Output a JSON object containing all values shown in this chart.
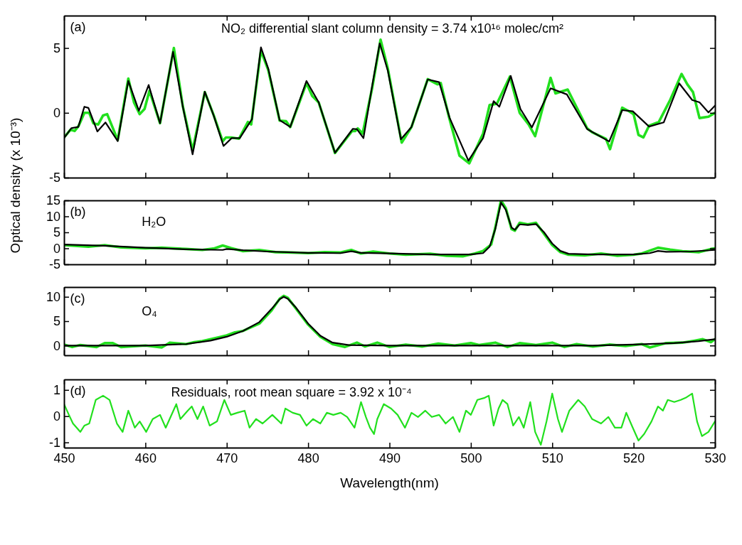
{
  "chart_data": [
    {
      "type": "line",
      "xlim": [
        450,
        530
      ],
      "xticks": [
        450,
        460,
        470,
        480,
        490,
        500,
        510,
        520,
        530
      ],
      "ylim": [
        -5,
        7.5
      ],
      "yticks": [
        -5,
        0,
        5
      ],
      "tick_labels": "y",
      "annotations": [
        "(a)",
        "NO₂ differential slant column density = 3.74 x10¹⁶ molec/cm²"
      ],
      "series": [
        {
          "color": "#22e01e",
          "x": [
            450,
            450.8,
            451.3,
            451.8,
            452.5,
            453.1,
            453.6,
            454.2,
            454.8,
            455.3,
            456.6,
            457.9,
            458.6,
            459.3,
            459.9,
            460.5,
            461.8,
            463.5,
            464.6,
            465.8,
            467.3,
            468.4,
            469.5,
            469.9,
            470.6,
            471.5,
            472.6,
            473.0,
            474.2,
            475.1,
            476.5,
            477.3,
            477.8,
            479.8,
            480.5,
            481.3,
            483.3,
            485.4,
            485.8,
            486.1,
            486.7,
            487.9,
            488.9,
            489.8,
            491.5,
            492.7,
            494.7,
            495.9,
            496.3,
            497.3,
            498.6,
            499.8,
            501.5,
            502.3,
            503.2,
            504.8,
            506.0,
            507.1,
            507.9,
            509.8,
            510.4,
            511.9,
            512.7,
            514.3,
            514.9,
            516.6,
            517.1,
            518.6,
            519.5,
            520.0,
            520.6,
            521.2,
            521.9,
            523.1,
            524.5,
            525.9,
            526.6,
            527.3,
            528.1,
            529.2,
            530
          ],
          "values": [
            -1.9,
            -1.3,
            -1.4,
            -1.0,
            0.0,
            0.0,
            -0.8,
            -0.9,
            -0.2,
            -0.1,
            -2.1,
            2.65,
            0.8,
            -0.1,
            0.3,
            1.7,
            -0.8,
            5.0,
            0.5,
            -2.9,
            1.6,
            -0.2,
            -2.2,
            -1.9,
            -1.9,
            -2.0,
            -0.7,
            -0.9,
            4.8,
            3.3,
            -0.6,
            -0.65,
            -1.1,
            2.3,
            1.3,
            0.8,
            -3.1,
            -1.4,
            -1.4,
            -1.2,
            -1.6,
            2.0,
            5.65,
            3.4,
            -2.3,
            -1.1,
            2.6,
            2.2,
            2.3,
            -0.3,
            -3.3,
            -3.9,
            -1.6,
            0.6,
            0.7,
            2.8,
            0.0,
            -0.9,
            -1.8,
            2.7,
            1.5,
            1.8,
            0.8,
            -1.2,
            -1.5,
            -2.0,
            -2.8,
            0.4,
            0.1,
            -0.1,
            -1.7,
            -1.9,
            -1.0,
            -0.7,
            1.0,
            3.0,
            2.2,
            1.6,
            -0.4,
            -0.3,
            0.0
          ]
        },
        {
          "color": "#000000",
          "x": [
            450,
            450.9,
            451.75,
            452.5,
            453.0,
            454.1,
            455.1,
            456.6,
            457.9,
            459.2,
            460.4,
            461.8,
            463.4,
            464.6,
            465.8,
            467.3,
            468.4,
            469.6,
            470.6,
            471.6,
            473.1,
            474.2,
            475.1,
            476.5,
            477.8,
            479.8,
            481.3,
            483.3,
            485.5,
            486.0,
            486.8,
            487.9,
            488.8,
            489.8,
            491.4,
            492.7,
            494.7,
            496.1,
            497.4,
            499.7,
            501.5,
            502.8,
            503.5,
            504.9,
            506.1,
            507.5,
            509.8,
            511.8,
            514.3,
            517.0,
            518.6,
            519.9,
            521.9,
            523.7,
            525.6,
            527.2,
            528.1,
            529.2,
            530
          ],
          "values": [
            -1.95,
            -1.18,
            -1.09,
            0.47,
            0.38,
            -1.44,
            -0.74,
            -2.18,
            2.46,
            0.16,
            2.15,
            -0.8,
            4.71,
            0.47,
            -3.2,
            1.63,
            -0.22,
            -2.56,
            -1.95,
            -1.95,
            -0.48,
            5.05,
            3.41,
            -0.57,
            -1.09,
            2.46,
            0.81,
            -3.08,
            -1.23,
            -1.26,
            -1.95,
            2.2,
            5.36,
            3.24,
            -2.04,
            -1.09,
            2.58,
            2.37,
            -0.4,
            -3.69,
            -1.95,
            0.9,
            0.47,
            2.85,
            0.29,
            -1.12,
            1.89,
            1.42,
            -1.26,
            -2.21,
            0.21,
            0.12,
            -1.06,
            -0.74,
            2.28,
            0.99,
            0.81,
            0.03,
            0.55
          ]
        }
      ]
    },
    {
      "type": "line",
      "xlim": [
        450,
        530
      ],
      "xticks": [
        450,
        460,
        470,
        480,
        490,
        500,
        510,
        520,
        530
      ],
      "ylim": [
        -5,
        15
      ],
      "yticks": [
        -5,
        0,
        5,
        10,
        15
      ],
      "tick_labels": "y",
      "ylabel": "Optical density (x 10⁻³)",
      "annotations": [
        "(b)",
        "H₂O"
      ],
      "series": [
        {
          "color": "#22e01e",
          "x": [
            450,
            453,
            455,
            457,
            460,
            462,
            465,
            467,
            468.5,
            469.5,
            470.5,
            472,
            474,
            476,
            478,
            480,
            482,
            484,
            485.3,
            486.5,
            488,
            490,
            492,
            495,
            497,
            499,
            500.5,
            501.5,
            502.5,
            503,
            503.7,
            504.3,
            505,
            505.4,
            506,
            507,
            508,
            509,
            510,
            511,
            512,
            514,
            516,
            518,
            520,
            521,
            523,
            524.5,
            526,
            528,
            529.5,
            530
          ],
          "values": [
            1.0,
            0.5,
            1.0,
            0.3,
            0.0,
            0.2,
            -0.2,
            -0.5,
            0.0,
            0.9,
            0.1,
            -0.9,
            -0.5,
            -1.2,
            -1.3,
            -1.5,
            -1.2,
            -1.3,
            -0.5,
            -1.6,
            -1.0,
            -1.6,
            -2.0,
            -1.7,
            -2.3,
            -2.5,
            -1.6,
            -0.8,
            1.2,
            6.5,
            15.0,
            12.5,
            6.0,
            5.5,
            8.0,
            7.5,
            8.0,
            4.5,
            1.0,
            -1.2,
            -2.0,
            -2.2,
            -1.6,
            -2.3,
            -2.0,
            -1.6,
            0.2,
            -0.4,
            -0.9,
            -1.2,
            -0.2,
            0.0
          ]
        },
        {
          "color": "#000000",
          "x": [
            450,
            455,
            460,
            465,
            469.5,
            470,
            472,
            475,
            480,
            484,
            485.3,
            486.5,
            490,
            495,
            500,
            501.5,
            502.3,
            503,
            503.7,
            504.3,
            505,
            505.4,
            506,
            507,
            508,
            509,
            510,
            511,
            512,
            515,
            520,
            522,
            523,
            524,
            527,
            530
          ],
          "values": [
            1.2,
            0.8,
            0.2,
            -0.3,
            -0.5,
            -0.2,
            -0.6,
            -1.0,
            -1.4,
            -1.5,
            -0.9,
            -1.4,
            -1.6,
            -1.9,
            -1.9,
            -1.5,
            0.5,
            6,
            14.3,
            12,
            6.5,
            5.8,
            7.5,
            7.3,
            7.6,
            5,
            1.5,
            -0.8,
            -1.7,
            -1.9,
            -1.9,
            -1.5,
            -0.8,
            -1.1,
            -1.0,
            -0.5
          ]
        }
      ]
    },
    {
      "type": "line",
      "xlim": [
        450,
        530
      ],
      "xticks": [
        450,
        460,
        470,
        480,
        490,
        500,
        510,
        520,
        530
      ],
      "ylim": [
        -2,
        12
      ],
      "yticks": [
        0,
        5,
        10
      ],
      "tick_labels": "y",
      "annotations": [
        "(c)",
        "O₄"
      ],
      "series": [
        {
          "color": "#22e01e",
          "x": [
            450,
            451,
            452,
            454,
            455,
            456,
            457,
            460,
            462,
            463,
            465,
            466,
            467,
            469,
            470,
            471,
            472,
            474,
            475.5,
            476.5,
            477,
            477.5,
            478.5,
            480,
            481.5,
            483,
            484.5,
            486,
            487,
            488.5,
            490,
            492,
            494,
            496,
            498,
            500,
            501,
            503,
            504.5,
            506,
            508,
            510,
            511.5,
            513,
            515,
            517,
            519,
            521,
            522,
            524,
            526,
            527.5,
            528.5,
            529.5,
            530
          ],
          "values": [
            0.2,
            -0.3,
            0.1,
            -0.3,
            0.5,
            0.5,
            -0.3,
            0.0,
            -0.4,
            0.6,
            0.3,
            0.7,
            0.9,
            1.7,
            2.1,
            2.7,
            3.0,
            4.5,
            7.2,
            9.6,
            10.2,
            9.8,
            7.6,
            4.3,
            1.8,
            0.3,
            -0.3,
            0.6,
            -0.2,
            0.6,
            -0.3,
            0.2,
            -0.2,
            0.4,
            0.0,
            0.5,
            0.1,
            0.6,
            -0.3,
            0.5,
            0.1,
            0.6,
            -0.3,
            0.3,
            -0.2,
            0.2,
            -0.1,
            0.3,
            -0.4,
            0.5,
            0.6,
            1.0,
            1.3,
            0.7,
            1.3
          ]
        },
        {
          "color": "#000000",
          "x": [
            450,
            460,
            465,
            468,
            470,
            472,
            474,
            475.5,
            476.5,
            477,
            477.5,
            478.5,
            480,
            481.5,
            483,
            485,
            490,
            500,
            510,
            515,
            520,
            525,
            528,
            530
          ],
          "values": [
            0,
            0,
            0.3,
            1.0,
            1.8,
            3.0,
            4.8,
            7.5,
            9.5,
            10,
            9.6,
            7.8,
            4.5,
            2,
            0.6,
            0.1,
            0,
            0,
            0,
            0,
            0.2,
            0.5,
            0.9,
            1.3
          ]
        }
      ]
    },
    {
      "type": "line",
      "xlim": [
        450,
        530
      ],
      "xticks": [
        450,
        460,
        470,
        480,
        490,
        500,
        510,
        520,
        530
      ],
      "ylim": [
        -1.2,
        1.4
      ],
      "yticks": [
        -1,
        0,
        1
      ],
      "xlabel": "Wavelength(nm)",
      "annotations": [
        "(d)",
        "Residuals, root mean square = 3.92 x 10⁻⁴"
      ],
      "series": [
        {
          "color": "#22e01e",
          "x": [
            450,
            450.6,
            451.1,
            452.0,
            452.5,
            453.1,
            453.9,
            454.8,
            455.6,
            456.5,
            457.2,
            457.9,
            458.7,
            459.3,
            460.1,
            460.9,
            461.8,
            462.5,
            463.8,
            464.3,
            465.2,
            465.7,
            466.4,
            467.1,
            467.9,
            468.8,
            469.7,
            470.5,
            471.3,
            472.2,
            472.8,
            473.6,
            474.4,
            475.6,
            476.7,
            477.2,
            478.1,
            479.0,
            479.8,
            480.6,
            481.5,
            482.3,
            483.1,
            484.0,
            484.8,
            485.7,
            486.5,
            487.1,
            487.6,
            488.1,
            488.5,
            489.3,
            490.2,
            491.0,
            491.9,
            492.7,
            493.5,
            494.4,
            495.2,
            496.1,
            496.9,
            497.8,
            498.6,
            499.4,
            500.0,
            500.8,
            501.7,
            502.2,
            502.8,
            503.4,
            503.9,
            504.5,
            505.2,
            505.9,
            506.5,
            507.3,
            507.9,
            508.6,
            509.3,
            510.0,
            510.7,
            511.2,
            512.1,
            513.2,
            514.0,
            514.9,
            516.0,
            516.9,
            517.7,
            518.5,
            519.1,
            519.9,
            520.6,
            521.3,
            522.2,
            523.0,
            523.6,
            524.2,
            525.0,
            525.8,
            526.4,
            527.2,
            527.8,
            528.4,
            529.2,
            530.0
          ],
          "values": [
            0.46,
            0.05,
            -0.28,
            -0.6,
            -0.36,
            -0.28,
            0.62,
            0.78,
            0.62,
            -0.28,
            -0.6,
            0.21,
            -0.44,
            -0.2,
            -0.6,
            -0.11,
            0.05,
            -0.44,
            0.46,
            -0.11,
            0.21,
            0.37,
            -0.11,
            0.37,
            -0.36,
            -0.2,
            0.62,
            0.05,
            0.13,
            0.21,
            -0.44,
            -0.11,
            -0.28,
            0.05,
            -0.28,
            0.29,
            0.13,
            0.05,
            -0.36,
            -0.11,
            -0.28,
            0.13,
            0.05,
            0.13,
            -0.03,
            -0.44,
            0.54,
            -0.03,
            -0.44,
            -0.68,
            -0.11,
            0.46,
            0.29,
            0.05,
            -0.44,
            0.13,
            -0.03,
            0.21,
            -0.03,
            0.05,
            -0.28,
            -0.03,
            -0.6,
            0.21,
            0.05,
            0.62,
            0.7,
            0.78,
            -0.36,
            0.29,
            0.62,
            0.46,
            -0.36,
            -0.03,
            -0.44,
            0.54,
            -0.6,
            -1.09,
            -0.2,
            0.86,
            -0.11,
            -0.6,
            0.21,
            0.62,
            0.37,
            -0.11,
            -0.28,
            -0.03,
            -0.44,
            -0.44,
            0.13,
            -0.44,
            -0.93,
            -0.68,
            -0.2,
            0.37,
            0.21,
            0.62,
            0.54,
            0.62,
            0.7,
            0.86,
            -0.2,
            -0.76,
            -0.6,
            -0.2
          ]
        }
      ]
    }
  ]
}
